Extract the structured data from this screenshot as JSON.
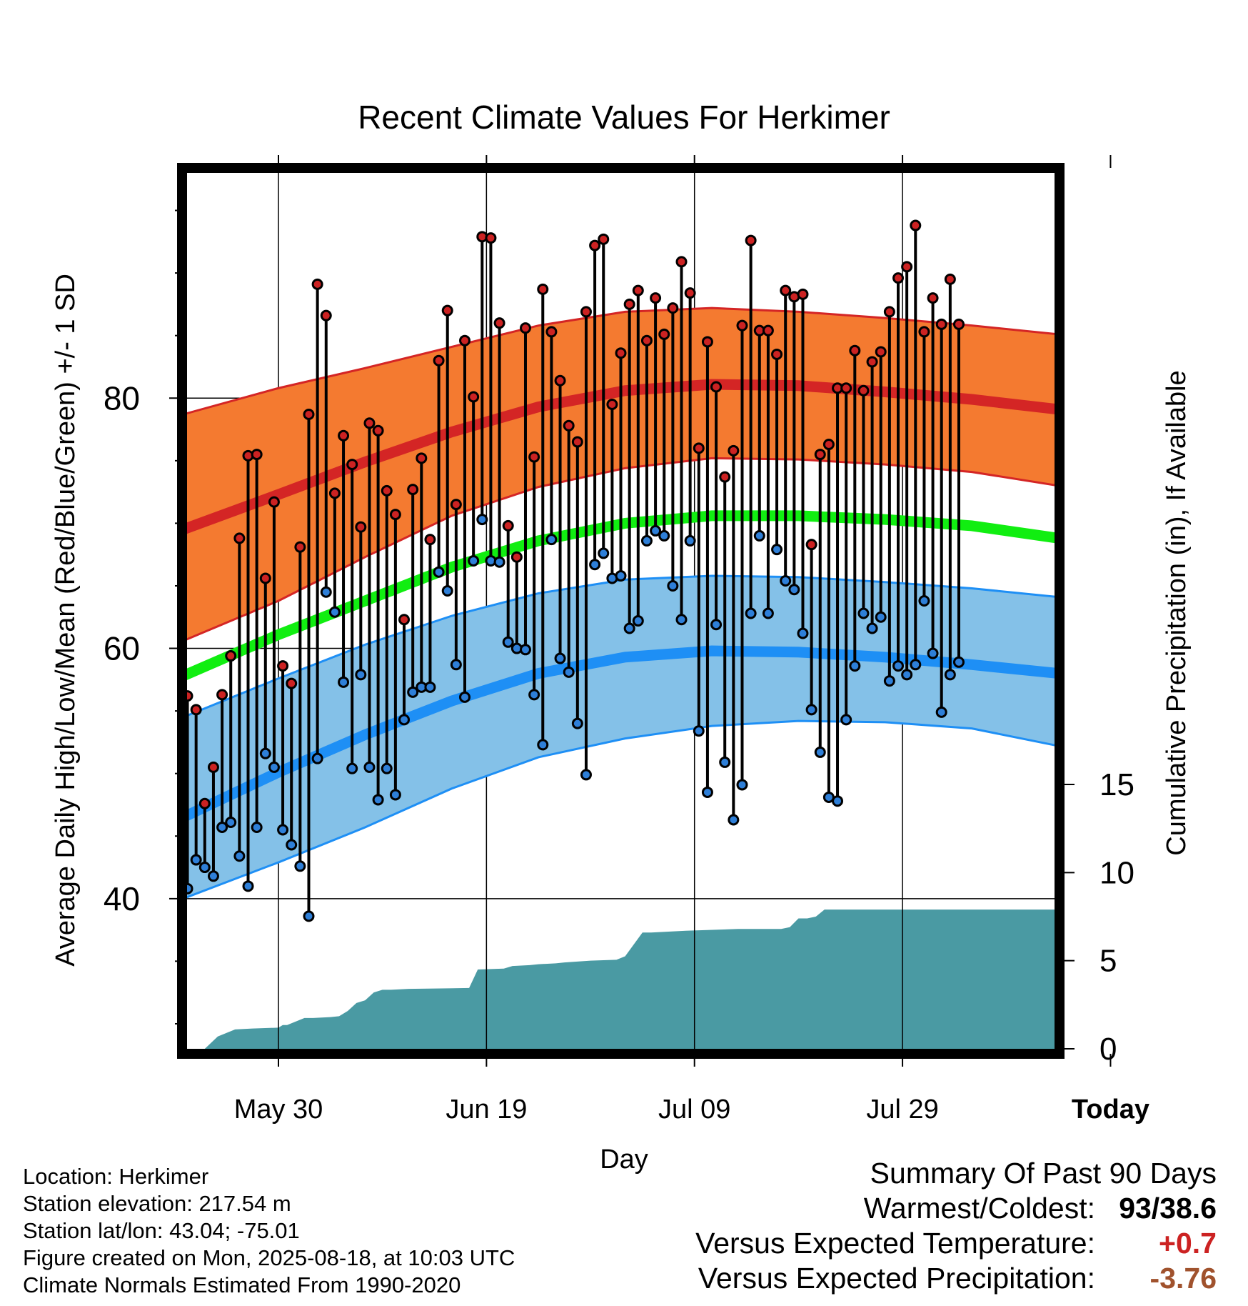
{
  "chart_data": {
    "type": "line",
    "title": "Recent Climate Values For Herkimer",
    "xlabel": "Day",
    "ylabel": "Average Daily High/Low/Mean (Red/Blue/Green) +/- 1 SD",
    "y2label": "Cumulative Precipitation (in), If Available",
    "x_ticks": [
      "May 30",
      "Jun 19",
      "Jul 09",
      "Jul 29",
      "Today"
    ],
    "y_ticks": [
      "40",
      "60",
      "80"
    ],
    "y2_ticks": [
      "0",
      "5",
      "10",
      "15"
    ],
    "ylim": [
      28,
      98
    ],
    "y2lim": [
      0,
      15
    ],
    "today_label": "90\nDays",
    "grid": true,
    "colors": {
      "high_band": "#f47a30",
      "high_mean": "#d42525",
      "low_band": "#84c1e8",
      "low_mean": "#1e8ff5",
      "mean_line": "#11ee11",
      "precip": "#4a9aa3",
      "high_dot": "#cc2222",
      "low_dot": "#2e7fd8"
    },
    "normals": {
      "day": [
        -11,
        0,
        10,
        20,
        30,
        40,
        50,
        60,
        70,
        80,
        90,
        100
      ],
      "high_mean": [
        69.5,
        72.3,
        74.9,
        77.3,
        79.3,
        80.6,
        81.1,
        81.0,
        80.5,
        79.9,
        79.1,
        77.6
      ],
      "high_sd_upper": [
        78.7,
        80.8,
        82.4,
        84.1,
        85.8,
        86.9,
        87.2,
        86.9,
        86.4,
        85.8,
        85.1,
        84.3
      ],
      "high_sd_lower": [
        60.6,
        63.8,
        67.3,
        70.6,
        72.9,
        74.4,
        75.2,
        75.1,
        74.7,
        74.1,
        73.0,
        72.3
      ],
      "mean_line": [
        57.8,
        61.1,
        63.8,
        66.5,
        68.6,
        70.0,
        70.6,
        70.6,
        70.3,
        69.8,
        68.8,
        67.0
      ],
      "low_mean": [
        46.5,
        50.1,
        53.1,
        55.8,
        58.0,
        59.3,
        59.8,
        59.7,
        59.3,
        58.7,
        58.0,
        56.2
      ],
      "low_sd_upper": [
        54.5,
        57.6,
        60.3,
        62.6,
        64.4,
        65.5,
        65.8,
        65.7,
        65.3,
        64.8,
        64.1,
        62.9
      ],
      "low_sd_lower": [
        40.0,
        42.9,
        45.7,
        48.8,
        51.3,
        52.8,
        53.8,
        54.2,
        54.1,
        53.6,
        52.2,
        50.3
      ]
    },
    "series": [
      {
        "name": "High",
        "values": [
          56.2,
          55.1,
          47.6,
          50.5,
          56.3,
          59.4,
          68.8,
          75.4,
          75.5,
          65.6,
          71.7,
          58.6,
          57.2,
          68.1,
          78.7,
          89.1,
          86.6,
          72.4,
          77.0,
          74.7,
          69.7,
          78.0,
          77.4,
          72.6,
          70.7,
          62.3,
          72.7,
          75.2,
          68.7,
          83.0,
          87.0,
          71.5,
          84.6,
          80.1,
          92.9,
          92.8,
          86.0,
          69.8,
          67.3,
          85.6,
          75.3,
          88.7,
          85.3,
          81.4,
          77.8,
          76.5,
          86.9,
          92.2,
          92.7,
          79.5,
          83.6,
          87.5,
          88.6,
          84.6,
          88.0,
          85.1,
          87.2,
          90.9,
          88.4,
          76.0,
          84.5,
          80.9,
          73.7,
          75.8,
          85.8,
          92.6,
          85.4,
          85.4,
          83.5,
          88.6,
          88.1,
          88.3,
          68.3,
          75.5,
          76.3,
          80.8,
          80.8,
          83.8,
          80.6,
          82.9,
          83.7,
          86.9,
          89.6,
          90.5,
          93.8,
          85.3,
          88.0,
          85.9,
          89.5,
          85.9
        ]
      },
      {
        "name": "Low",
        "values": [
          40.8,
          43.1,
          42.5,
          41.8,
          45.7,
          46.1,
          43.4,
          41.0,
          45.7,
          51.6,
          50.5,
          45.5,
          44.3,
          42.6,
          38.6,
          51.2,
          64.5,
          62.9,
          57.3,
          50.4,
          57.9,
          50.5,
          47.9,
          50.4,
          48.3,
          54.3,
          56.5,
          56.9,
          56.9,
          66.1,
          64.6,
          58.7,
          56.1,
          67.0,
          70.3,
          67.0,
          66.9,
          60.5,
          60.0,
          59.9,
          56.3,
          52.3,
          68.7,
          59.2,
          58.1,
          54.0,
          49.9,
          66.7,
          67.6,
          65.6,
          65.8,
          61.6,
          62.2,
          68.6,
          69.4,
          69.0,
          65.0,
          62.3,
          68.6,
          53.4,
          48.5,
          61.9,
          50.9,
          46.3,
          49.1,
          62.8,
          69.0,
          62.8,
          67.9,
          65.4,
          64.7,
          61.2,
          55.1,
          51.7,
          48.1,
          47.8,
          54.3,
          58.6,
          62.8,
          61.6,
          62.5,
          57.4,
          58.6,
          57.9,
          58.7,
          63.8,
          59.6,
          54.9,
          57.9,
          58.9
        ]
      }
    ],
    "precip_cumulative": {
      "day": [
        -8.5,
        -7,
        -5,
        -3,
        0,
        0.5,
        1,
        3,
        4,
        6,
        7,
        8,
        9,
        10,
        11,
        12,
        13,
        15,
        22,
        23,
        26,
        27,
        29,
        30,
        32,
        33,
        36,
        39,
        40,
        42,
        43,
        47,
        53,
        58,
        59,
        60,
        61,
        62,
        63,
        72,
        75,
        77,
        78,
        79,
        79.5
      ],
      "value": [
        0,
        0.7,
        1.1,
        1.15,
        1.2,
        1.35,
        1.35,
        1.75,
        1.75,
        1.8,
        1.85,
        2.15,
        2.6,
        2.75,
        3.2,
        3.35,
        3.35,
        3.4,
        3.45,
        4.5,
        4.55,
        4.7,
        4.75,
        4.8,
        4.85,
        4.9,
        5.0,
        5.05,
        5.25,
        6.6,
        6.6,
        6.7,
        6.8,
        6.8,
        6.9,
        7.4,
        7.4,
        7.5,
        7.9,
        7.9,
        7.9,
        7.9,
        7.9,
        7.9,
        7.9
      ],
      "ymax": 7.9
    }
  },
  "info": {
    "location": "Location: Herkimer",
    "elevation": "Station elevation: 217.54 m",
    "latlon": "Station lat/lon: 43.04; -75.01",
    "created": "Figure created on Mon, 2025-08-18, at 10:03 UTC",
    "normals": "Climate Normals Estimated From 1990-2020"
  },
  "summary": {
    "heading": "Summary Of Past 90 Days",
    "warmest_label": "Warmest/Coldest:",
    "warmest_value": "93/38.6",
    "temp_label": "Versus Expected Temperature:",
    "temp_value": "+0.7",
    "temp_color": "#cc2222",
    "precip_label": "Versus Expected Precipitation:",
    "precip_value": "-3.76",
    "precip_color": "#a0522d"
  }
}
